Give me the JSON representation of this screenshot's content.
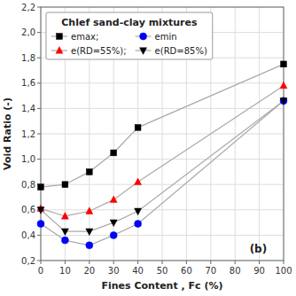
{
  "chart_data": {
    "type": "line",
    "title": "Chlef sand-clay mixtures",
    "x_label": "Fines Content , Fc (%)",
    "y_label": "Void Ratio (-)",
    "x": [
      0,
      10,
      20,
      30,
      40,
      100
    ],
    "series": [
      {
        "name": "emax;",
        "color": "black",
        "marker": "square",
        "values": [
          0.78,
          0.8,
          0.9,
          1.05,
          1.25,
          1.75
        ]
      },
      {
        "name": "emin",
        "color": "blue",
        "marker": "circle",
        "values": [
          0.49,
          0.36,
          0.32,
          0.4,
          0.49,
          1.46
        ]
      },
      {
        "name": "e(RD=55%);",
        "color": "red",
        "marker": "triangle-up",
        "values": [
          0.61,
          0.55,
          0.59,
          0.68,
          0.82,
          1.58
        ]
      },
      {
        "name": "e(RD=85%)",
        "color": "black",
        "marker": "triangle-down",
        "values": [
          0.6,
          0.43,
          0.43,
          0.5,
          0.59,
          1.46
        ]
      }
    ],
    "color": "#aaaaaa",
    "xlim": [
      0,
      100
    ],
    "ylim": [
      0.2,
      2.2
    ],
    "xticks": [
      0,
      10,
      20,
      30,
      40,
      50,
      60,
      70,
      80,
      90,
      100
    ],
    "yticks": [
      {
        "value": 0.2,
        "label": "0,2"
      },
      {
        "value": 0.4,
        "label": "0,4"
      },
      {
        "value": 0.6,
        "label": "0,6"
      },
      {
        "value": 0.8,
        "label": "0,8"
      },
      {
        "value": 1.0,
        "label": "1,0"
      },
      {
        "value": 1.2,
        "label": "1,2"
      },
      {
        "value": 1.4,
        "label": "1,4"
      },
      {
        "value": 1.6,
        "label": "1,6"
      },
      {
        "value": 1.8,
        "label": "1,8"
      },
      {
        "value": 2.0,
        "label": "2,0"
      },
      {
        "value": 2.2,
        "label": "2,2"
      }
    ],
    "grid": true,
    "legend": "upper-left",
    "annotations": [
      {
        "text": "(b)",
        "x": 86,
        "y": 0.265
      }
    ]
  }
}
